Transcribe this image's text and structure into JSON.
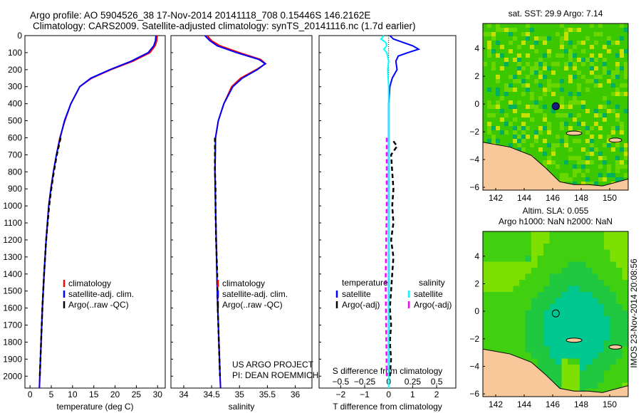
{
  "header": {
    "title_line1": "Argo profile: AO 5904526_38 17-Nov-2014 20141118_708 0.15446S 146.2162E",
    "title_line2": "Climatology: CARS2009. Satellite-adjusted climatology: synTS_20141116.nc (1.7d earlier)"
  },
  "footer": {
    "project": "US ARGO PROJECT",
    "pi": "PI: DEAN ROEMMICH",
    "stamp": "IMOS 23-Nov-2014 20:08:56"
  },
  "colors": {
    "climatology": "#ff0000",
    "satellite": "#0000ff",
    "argo": "#000000",
    "sal_satellite": "#00ffff",
    "sal_argo": "#ff00ff",
    "land": "#f8c89a"
  },
  "chart_data": [
    {
      "type": "line",
      "xlabel": "temperature (deg C)",
      "ylabel": "",
      "xlim": [
        -1.2,
        31.8
      ],
      "ylim": [
        0,
        2070
      ],
      "xticks": [
        0,
        5,
        10,
        15,
        20,
        25,
        30
      ],
      "yticks": [
        0,
        100,
        200,
        300,
        400,
        500,
        600,
        700,
        800,
        900,
        1000,
        1100,
        1200,
        1300,
        1400,
        1500,
        1600,
        1700,
        1800,
        1900,
        2000
      ],
      "legend": [
        "climatology",
        "satellite-adj. clim.",
        "Argo(..raw -QC)"
      ],
      "legend_placement": "lower-center",
      "series": [
        {
          "name": "climatology",
          "depth": [
            0,
            30,
            60,
            100,
            150,
            200,
            250,
            300,
            400,
            500,
            600,
            700,
            800,
            900,
            1000,
            1200,
            1400,
            1600,
            1800,
            2000,
            2070
          ],
          "values": [
            29.9,
            29.8,
            29.4,
            28.2,
            24.2,
            19.0,
            14.5,
            11.7,
            9.6,
            8.2,
            7.0,
            6.2,
            5.5,
            4.9,
            4.4,
            3.8,
            3.3,
            2.9,
            2.6,
            2.3,
            2.2
          ]
        },
        {
          "name": "satellite-adj. clim.",
          "depth": [
            0,
            30,
            60,
            100,
            150,
            200,
            250,
            300,
            400,
            500,
            600,
            700,
            800,
            900,
            1000,
            1200,
            1400,
            1600,
            1800,
            2000,
            2070
          ],
          "values": [
            29.6,
            29.5,
            29.1,
            27.8,
            23.8,
            18.8,
            14.3,
            11.7,
            9.6,
            8.1,
            7.1,
            6.2,
            5.5,
            4.9,
            4.4,
            3.8,
            3.3,
            2.9,
            2.6,
            2.3,
            2.2
          ]
        },
        {
          "name": "Argo(..raw -QC)",
          "depth": [
            600,
            700,
            800,
            900,
            1000,
            1200,
            1400,
            1600,
            1800,
            2000
          ],
          "values": [
            7.2,
            6.3,
            5.6,
            5.0,
            4.5,
            3.8,
            3.3,
            2.9,
            2.6,
            2.3
          ]
        }
      ]
    },
    {
      "type": "line",
      "xlabel": "salinity",
      "xlim": [
        33.77,
        36.3
      ],
      "ylim": [
        0,
        2070
      ],
      "xticks": [
        34,
        34.5,
        35,
        35.5,
        36
      ],
      "legend": [
        "climatology",
        "satellite-adj. clim.",
        "Argo(..raw -QC)"
      ],
      "legend_placement": "lower-center",
      "series": [
        {
          "name": "climatology",
          "depth": [
            0,
            30,
            60,
            100,
            140,
            165,
            200,
            250,
            300,
            400,
            500,
            600,
            800,
            1000,
            1500,
            2000,
            2070
          ],
          "values": [
            34.42,
            34.5,
            34.65,
            35.0,
            35.38,
            35.47,
            35.3,
            35.02,
            34.86,
            34.72,
            34.62,
            34.57,
            34.56,
            34.57,
            34.6,
            34.65,
            34.66
          ]
        },
        {
          "name": "satellite-adj. clim.",
          "depth": [
            0,
            30,
            60,
            100,
            140,
            165,
            200,
            250,
            300,
            400,
            500,
            600,
            800,
            1000,
            1500,
            2000,
            2070
          ],
          "values": [
            34.38,
            34.47,
            34.6,
            34.95,
            35.35,
            35.46,
            35.32,
            35.05,
            34.88,
            34.72,
            34.62,
            34.57,
            34.56,
            34.57,
            34.6,
            34.65,
            34.66
          ]
        },
        {
          "name": "Argo(..raw -QC)",
          "depth": [
            600,
            700,
            800,
            900,
            1000,
            1200,
            1400,
            1600,
            1800,
            2000
          ],
          "values": [
            34.56,
            34.56,
            34.56,
            34.57,
            34.57,
            34.58,
            34.6,
            34.61,
            34.63,
            34.65
          ]
        }
      ]
    },
    {
      "type": "line",
      "xlabel": "T difference from climatology",
      "xlabel2": "S difference from climatology",
      "xlim": [
        -2.9,
        2.8
      ],
      "xlim2": [
        -0.725,
        0.7
      ],
      "ylim": [
        0,
        2070
      ],
      "xticks": [
        -2,
        -1,
        0,
        1,
        2
      ],
      "xticks2": [
        -0.5,
        -0.25,
        0,
        0.25,
        0.5
      ],
      "legend_titles": [
        "temperature",
        "salinity"
      ],
      "legend": [
        "satellite",
        "Argo(-adj)",
        "satellite",
        "Argo(-adj)"
      ],
      "series": [
        {
          "name": "temperature satellite",
          "depth": [
            0,
            20,
            40,
            60,
            80,
            100,
            120,
            150,
            200,
            250,
            300,
            400,
            600,
            1000,
            2000
          ],
          "values": [
            0.05,
            0.2,
            0.6,
            1.0,
            1.25,
            0.8,
            0.4,
            0.3,
            0.35,
            0.15,
            0.05,
            0.0,
            0.0,
            0.0,
            0.0
          ]
        },
        {
          "name": "temperature Argo(-adj)",
          "depth": [
            620,
            650,
            700,
            800,
            900,
            1000,
            1100,
            1200,
            1300,
            1400,
            1500,
            1600,
            1700,
            1800,
            1900,
            2000
          ],
          "values": [
            0.2,
            0.35,
            0.1,
            0.15,
            0.2,
            0.15,
            0.2,
            0.1,
            0.2,
            0.15,
            0.1,
            0.05,
            0.1,
            0.05,
            0.1,
            0.05
          ]
        },
        {
          "name": "salinity satellite",
          "depth": [
            0,
            20,
            40,
            60,
            80,
            100,
            150,
            200,
            300,
            400,
            2070
          ],
          "values": [
            -0.05,
            -0.08,
            -0.03,
            -0.02,
            -0.05,
            -0.02,
            0.0,
            -0.01,
            0.0,
            0.0,
            0.0
          ]
        },
        {
          "name": "salinity Argo(-adj)",
          "depth": [
            600,
            1000,
            1400,
            1500,
            2000
          ],
          "values": [
            -0.02,
            -0.02,
            -0.03,
            -0.03,
            -0.02
          ]
        }
      ]
    },
    {
      "type": "heatmap",
      "title": "sat. SST: 29.9 Argo: 7.14",
      "xlim": [
        141.1,
        151.3
      ],
      "ylim": [
        -6.2,
        5.8
      ],
      "xticks": [
        142,
        144,
        146,
        148,
        150
      ],
      "yticks": [
        -6,
        -4,
        -2,
        0,
        2,
        4
      ],
      "marker": {
        "lon": 146.2162,
        "lat": -0.15446
      }
    },
    {
      "type": "heatmap",
      "title": "Altim. SLA: 0.055",
      "subtitle": "Argo h1000: NaN h2000: NaN",
      "xlim": [
        141.1,
        151.3
      ],
      "ylim": [
        -6.2,
        5.8
      ],
      "xticks": [
        142,
        144,
        146,
        148,
        150
      ],
      "yticks": [
        -6,
        -4,
        -2,
        0,
        2,
        4
      ],
      "marker": {
        "lon": 146.2162,
        "lat": -0.15446
      }
    }
  ]
}
